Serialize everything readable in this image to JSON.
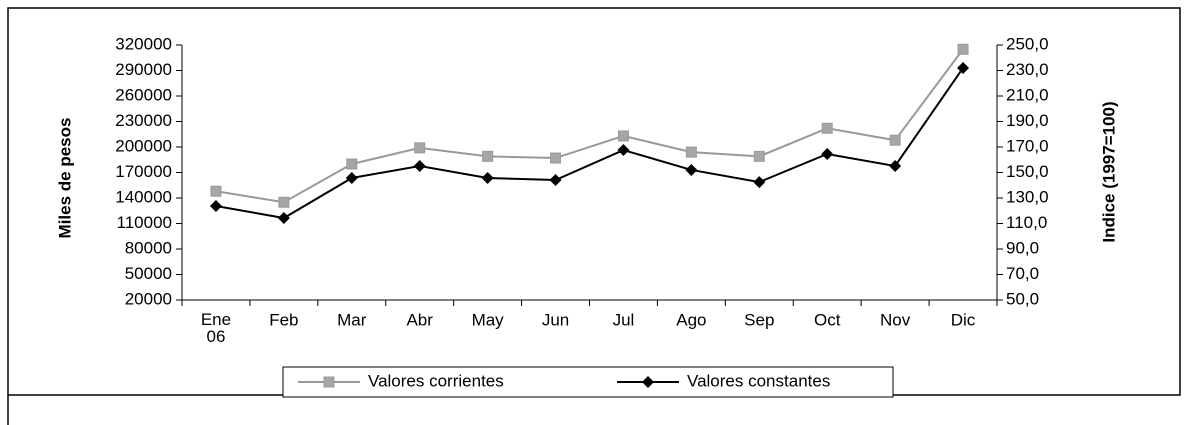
{
  "chart_data": {
    "type": "line",
    "ylabel": "Miles de pesos",
    "y2label": "Indice (1997=100)",
    "categories": [
      "Ene\n06",
      "Feb",
      "Mar",
      "Abr",
      "May",
      "Jun",
      "Jul",
      "Ago",
      "Sep",
      "Oct",
      "Nov",
      "Dic"
    ],
    "series": [
      {
        "name": "Valores corrientes",
        "color": "#999999",
        "marker": "square",
        "values": [
          148000,
          135000,
          180000,
          199000,
          189000,
          187000,
          213000,
          194000,
          189000,
          222000,
          208000,
          315000
        ]
      },
      {
        "name": "Valores constantes",
        "color": "#000000",
        "marker": "diamond",
        "axis": "y2",
        "values": [
          123.7,
          114.3,
          145.7,
          155.1,
          145.7,
          144.1,
          167.6,
          152.0,
          142.5,
          164.5,
          155.1,
          232.0
        ]
      }
    ],
    "ylim": [
      20000,
      320000
    ],
    "yticks": [
      20000,
      50000,
      80000,
      110000,
      140000,
      170000,
      200000,
      230000,
      260000,
      290000,
      320000
    ],
    "y2lim": [
      50,
      250
    ],
    "y2ticks": [
      {
        "value": 50,
        "label": "50,0"
      },
      {
        "value": 70,
        "label": "70,0"
      },
      {
        "value": 90,
        "label": "90,0"
      },
      {
        "value": 110,
        "label": "110,0"
      },
      {
        "value": 130,
        "label": "130,0"
      },
      {
        "value": 150,
        "label": "150,0"
      },
      {
        "value": 170,
        "label": "170,0"
      },
      {
        "value": 190,
        "label": "190,0"
      },
      {
        "value": 210,
        "label": "210,0"
      },
      {
        "value": 230,
        "label": "230,0"
      },
      {
        "value": 250,
        "label": "250,0"
      }
    ],
    "grid": false,
    "legend": "bottom"
  }
}
